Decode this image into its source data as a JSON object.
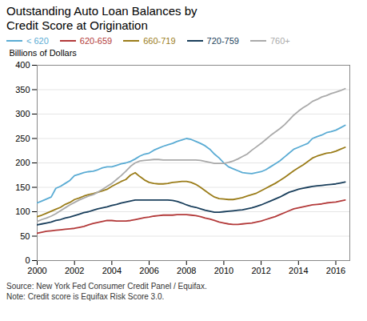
{
  "chart_data": {
    "type": "line",
    "title": "Outstanding Auto Loan Balances by\nCredit Score at Origination",
    "y_label": "Billions of Dollars",
    "annotations": [
      "Source: New York Fed Consumer Credit Panel / Equifax.",
      "Note: Credit score is Equifax Risk Score 3.0."
    ],
    "xlim": [
      2000,
      2016.75
    ],
    "ylim": [
      0,
      400
    ],
    "xticks": [
      2000,
      2002,
      2004,
      2006,
      2008,
      2010,
      2012,
      2014,
      2016
    ],
    "yticks": [
      0,
      50,
      100,
      150,
      200,
      250,
      300,
      350,
      400
    ],
    "grid": true,
    "legend": "top",
    "x": [
      2000.0,
      2000.25,
      2000.5,
      2000.75,
      2001.0,
      2001.25,
      2001.5,
      2001.75,
      2002.0,
      2002.25,
      2002.5,
      2002.75,
      2003.0,
      2003.25,
      2003.5,
      2003.75,
      2004.0,
      2004.25,
      2004.5,
      2004.75,
      2005.0,
      2005.25,
      2005.5,
      2005.75,
      2006.0,
      2006.25,
      2006.5,
      2006.75,
      2007.0,
      2007.25,
      2007.5,
      2007.75,
      2008.0,
      2008.25,
      2008.5,
      2008.75,
      2009.0,
      2009.25,
      2009.5,
      2009.75,
      2010.0,
      2010.25,
      2010.5,
      2010.75,
      2011.0,
      2011.25,
      2011.5,
      2011.75,
      2012.0,
      2012.25,
      2012.5,
      2012.75,
      2013.0,
      2013.25,
      2013.5,
      2013.75,
      2014.0,
      2014.25,
      2014.5,
      2014.75,
      2015.0,
      2015.25,
      2015.5,
      2015.75,
      2016.0,
      2016.25,
      2016.5
    ],
    "series": [
      {
        "name": "< 620",
        "color": "#5BACD4",
        "values": [
          118,
          122,
          126,
          130,
          148,
          152,
          158,
          164,
          174,
          177,
          180,
          182,
          183,
          186,
          190,
          192,
          192,
          195,
          198,
          200,
          203,
          208,
          214,
          218,
          220,
          226,
          230,
          234,
          237,
          240,
          244,
          247,
          250,
          248,
          244,
          240,
          235,
          228,
          218,
          210,
          200,
          192,
          188,
          184,
          180,
          179,
          178,
          180,
          182,
          186,
          192,
          198,
          204,
          212,
          220,
          228,
          232,
          236,
          240,
          250,
          254,
          257,
          262,
          264,
          267,
          272,
          277
        ]
      },
      {
        "name": "620-659",
        "color": "#B33A3A",
        "values": [
          56,
          58,
          60,
          61,
          62,
          63,
          64,
          65,
          66,
          68,
          70,
          73,
          76,
          78,
          80,
          82,
          82,
          81,
          81,
          81,
          82,
          84,
          86,
          88,
          89,
          91,
          92,
          93,
          93,
          93,
          94,
          94,
          94,
          93,
          92,
          90,
          87,
          85,
          82,
          79,
          77,
          75,
          74,
          74,
          75,
          76,
          77,
          79,
          81,
          84,
          87,
          90,
          94,
          98,
          102,
          106,
          108,
          110,
          112,
          114,
          115,
          116,
          118,
          119,
          120,
          122,
          124
        ]
      },
      {
        "name": "660-719",
        "color": "#9B7D1A",
        "values": [
          90,
          93,
          97,
          101,
          105,
          109,
          115,
          119,
          125,
          128,
          132,
          135,
          137,
          140,
          143,
          146,
          152,
          157,
          162,
          166,
          175,
          180,
          172,
          165,
          160,
          158,
          157,
          157,
          158,
          160,
          161,
          162,
          162,
          160,
          156,
          150,
          143,
          136,
          130,
          127,
          126,
          125,
          125,
          127,
          129,
          132,
          135,
          138,
          143,
          148,
          153,
          158,
          164,
          170,
          177,
          184,
          190,
          196,
          203,
          210,
          214,
          217,
          220,
          221,
          224,
          228,
          232
        ]
      },
      {
        "name": "720-759",
        "color": "#1A3F5C",
        "values": [
          73,
          75,
          77,
          79,
          82,
          84,
          87,
          89,
          92,
          95,
          98,
          100,
          103,
          106,
          108,
          110,
          113,
          115,
          118,
          120,
          122,
          124,
          124,
          124,
          124,
          124,
          124,
          124,
          124,
          123,
          121,
          118,
          114,
          111,
          109,
          106,
          103,
          101,
          99,
          99,
          100,
          101,
          102,
          103,
          104,
          106,
          108,
          111,
          114,
          118,
          122,
          126,
          130,
          135,
          140,
          143,
          146,
          148,
          150,
          152,
          153,
          154,
          155,
          156,
          157,
          159,
          161
        ]
      },
      {
        "name": "760+",
        "color": "#AAAAAA",
        "values": [
          80,
          84,
          87,
          91,
          96,
          102,
          108,
          114,
          119,
          124,
          128,
          132,
          135,
          140,
          146,
          152,
          158,
          166,
          174,
          183,
          193,
          200,
          204,
          205,
          206,
          207,
          207,
          206,
          206,
          206,
          206,
          206,
          206,
          206,
          206,
          205,
          203,
          201,
          199,
          199,
          199,
          201,
          204,
          208,
          213,
          218,
          226,
          233,
          240,
          248,
          256,
          263,
          270,
          278,
          288,
          298,
          306,
          313,
          319,
          326,
          330,
          335,
          338,
          342,
          345,
          348,
          352
        ]
      }
    ]
  }
}
